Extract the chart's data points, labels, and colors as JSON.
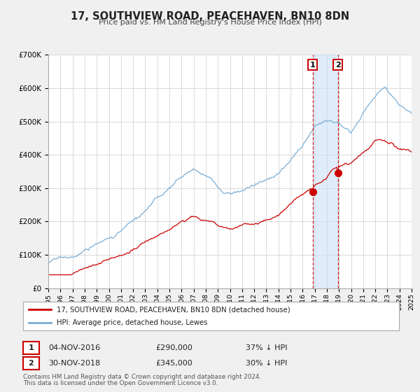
{
  "title": "17, SOUTHVIEW ROAD, PEACEHAVEN, BN10 8DN",
  "subtitle": "Price paid vs. HM Land Registry's House Price Index (HPI)",
  "legend_line1": "17, SOUTHVIEW ROAD, PEACEHAVEN, BN10 8DN (detached house)",
  "legend_line2": "HPI: Average price, detached house, Lewes",
  "footnote1": "Contains HM Land Registry data © Crown copyright and database right 2024.",
  "footnote2": "This data is licensed under the Open Government Licence v3.0.",
  "sale1_date": "04-NOV-2016",
  "sale1_price": "£290,000",
  "sale1_hpi": "37% ↓ HPI",
  "sale1_year": 2016.84,
  "sale1_value": 290000,
  "sale2_date": "30-NOV-2018",
  "sale2_price": "£345,000",
  "sale2_hpi": "30% ↓ HPI",
  "sale2_year": 2018.92,
  "sale2_value": 345000,
  "red_color": "#cc0000",
  "blue_color": "#7aaed6",
  "background_color": "#f0f0f0",
  "plot_bg_color": "#ffffff",
  "grid_color": "#cccccc",
  "shade_color": "#cce0f5",
  "ylim": [
    0,
    700000
  ],
  "yticks": [
    0,
    100000,
    200000,
    300000,
    400000,
    500000,
    600000,
    700000
  ],
  "ytick_labels": [
    "£0",
    "£100K",
    "£200K",
    "£300K",
    "£400K",
    "£500K",
    "£600K",
    "£700K"
  ]
}
